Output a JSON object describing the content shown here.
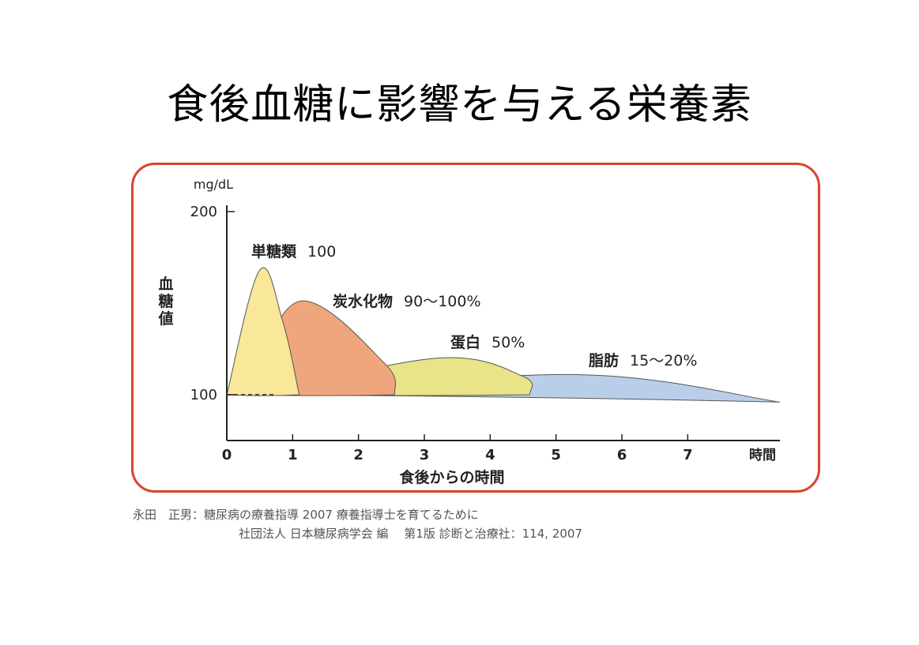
{
  "title": "食後血糖に影響を与える栄養素",
  "colors": {
    "frame": "#d9442b",
    "axis": "#222222"
  },
  "chart_data": {
    "type": "area",
    "title": "",
    "unit_label": "mg/dL",
    "ylabel": "血糖値",
    "xlabel": "食後からの時間",
    "x_unit_label": "時間",
    "xlim": [
      0,
      8.4
    ],
    "ylim": [
      75,
      200
    ],
    "x_ticks": [
      0,
      1,
      2,
      3,
      4,
      5,
      6,
      7
    ],
    "y_ticks": [
      100,
      200
    ],
    "grid": false,
    "series": [
      {
        "name": "単糖類",
        "label_value": "100",
        "color": "#f9e79a",
        "points": [
          [
            0,
            100
          ],
          [
            0.5,
            168
          ],
          [
            0.85,
            140
          ],
          [
            1.1,
            100
          ]
        ]
      },
      {
        "name": "炭水化物",
        "label_value": "90〜100%",
        "color": "#f0a67c",
        "points": [
          [
            0.3,
            100
          ],
          [
            1.1,
            151
          ],
          [
            2.4,
            117
          ],
          [
            2.55,
            100
          ]
        ]
      },
      {
        "name": "蛋白",
        "label_value": "50%",
        "color": "#e8e487",
        "points": [
          [
            0.5,
            100
          ],
          [
            3.2,
            120
          ],
          [
            4.5,
            110
          ],
          [
            4.6,
            100
          ]
        ]
      },
      {
        "name": "脂肪",
        "label_value": "15〜20%",
        "color": "#b9cfe9",
        "points": [
          [
            0.8,
            100
          ],
          [
            5.3,
            111
          ],
          [
            8.4,
            96
          ]
        ]
      }
    ]
  },
  "citation": {
    "line1": "永田　正男：糖尿病の療養指導 2007 療養指導士を育てるために",
    "line2": "社団法人 日本糖尿病学会 編　 第1版 診断と治療社：114, 2007"
  }
}
